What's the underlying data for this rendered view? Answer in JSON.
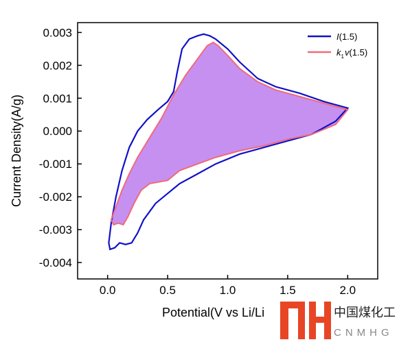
{
  "chart_data": {
    "type": "line",
    "xlabel": "Potential(V vs Li/Li",
    "ylabel": "Current Density(A/g)",
    "xlim": [
      -0.25,
      2.25
    ],
    "ylim": [
      -0.0045,
      0.0033
    ],
    "x_ticks": [
      "0.0",
      "0.5",
      "1.0",
      "1.5",
      "2.0"
    ],
    "y_ticks": [
      "0.003",
      "0.002",
      "0.001",
      "0.000",
      "-0.001",
      "-0.002",
      "-0.003",
      "-0.004"
    ],
    "x_tick_values": [
      0.0,
      0.5,
      1.0,
      1.5,
      2.0
    ],
    "y_tick_values": [
      0.003,
      0.002,
      0.001,
      0.0,
      -0.001,
      -0.002,
      -0.003,
      -0.004
    ],
    "grid": false,
    "legend_position": "top-right",
    "series": [
      {
        "name": "I(1.5)",
        "color": "#1010c8",
        "points": [
          [
            2.0,
            0.0007
          ],
          [
            1.8,
            0.0009
          ],
          [
            1.6,
            0.00115
          ],
          [
            1.4,
            0.00135
          ],
          [
            1.25,
            0.0016
          ],
          [
            1.1,
            0.0021
          ],
          [
            1.0,
            0.0025
          ],
          [
            0.9,
            0.0028
          ],
          [
            0.85,
            0.0029
          ],
          [
            0.8,
            0.00295
          ],
          [
            0.75,
            0.0029
          ],
          [
            0.68,
            0.0028
          ],
          [
            0.62,
            0.0025
          ],
          [
            0.58,
            0.0018
          ],
          [
            0.55,
            0.0012
          ],
          [
            0.5,
            0.0009
          ],
          [
            0.42,
            0.00065
          ],
          [
            0.33,
            0.00035
          ],
          [
            0.25,
            0.0
          ],
          [
            0.18,
            -0.0005
          ],
          [
            0.12,
            -0.0012
          ],
          [
            0.07,
            -0.002
          ],
          [
            0.03,
            -0.0028
          ],
          [
            0.01,
            -0.0034
          ],
          [
            0.02,
            -0.0036
          ],
          [
            0.06,
            -0.00355
          ],
          [
            0.1,
            -0.0034
          ],
          [
            0.15,
            -0.00345
          ],
          [
            0.2,
            -0.0034
          ],
          [
            0.25,
            -0.0031
          ],
          [
            0.3,
            -0.0027
          ],
          [
            0.4,
            -0.0022
          ],
          [
            0.5,
            -0.0019
          ],
          [
            0.6,
            -0.0016
          ],
          [
            0.75,
            -0.0013
          ],
          [
            0.9,
            -0.001
          ],
          [
            1.1,
            -0.0007
          ],
          [
            1.3,
            -0.0005
          ],
          [
            1.5,
            -0.0003
          ],
          [
            1.7,
            -0.0001
          ],
          [
            1.9,
            0.0003
          ],
          [
            2.0,
            0.0007
          ]
        ]
      },
      {
        "name": "k1v(1.5)",
        "color": "#f06a78",
        "points": [
          [
            2.0,
            0.00065
          ],
          [
            1.8,
            0.00085
          ],
          [
            1.6,
            0.00105
          ],
          [
            1.4,
            0.00125
          ],
          [
            1.25,
            0.0015
          ],
          [
            1.1,
            0.0019
          ],
          [
            1.0,
            0.0023
          ],
          [
            0.92,
            0.0026
          ],
          [
            0.88,
            0.0027
          ],
          [
            0.83,
            0.0026
          ],
          [
            0.75,
            0.0022
          ],
          [
            0.65,
            0.0017
          ],
          [
            0.55,
            0.0011
          ],
          [
            0.45,
            0.0004
          ],
          [
            0.35,
            -0.0002
          ],
          [
            0.25,
            -0.0008
          ],
          [
            0.18,
            -0.0013
          ],
          [
            0.12,
            -0.0018
          ],
          [
            0.07,
            -0.0023
          ],
          [
            0.03,
            -0.0027
          ],
          [
            0.05,
            -0.00285
          ],
          [
            0.09,
            -0.0028
          ],
          [
            0.13,
            -0.00285
          ],
          [
            0.17,
            -0.0026
          ],
          [
            0.22,
            -0.0022
          ],
          [
            0.28,
            -0.0018
          ],
          [
            0.35,
            -0.0016
          ],
          [
            0.5,
            -0.0015
          ],
          [
            0.6,
            -0.0012
          ],
          [
            0.75,
            -0.001
          ],
          [
            0.9,
            -0.0008
          ],
          [
            1.1,
            -0.0006
          ],
          [
            1.3,
            -0.00045
          ],
          [
            1.5,
            -0.00025
          ],
          [
            1.7,
            -0.0001
          ],
          [
            1.9,
            0.0002
          ],
          [
            2.0,
            0.00065
          ]
        ]
      }
    ],
    "fill": {
      "series": "k1v(1.5)",
      "color": "#c084f0"
    }
  },
  "legend": {
    "entries": [
      {
        "italic": "I",
        "text": "(1.5)",
        "color": "#1010c8"
      },
      {
        "italic": "k",
        "sub": "1",
        "italic2": "v",
        "text": "(1.5)",
        "color": "#f06a78"
      }
    ]
  },
  "watermark": {
    "logo_text": "MH",
    "cn": "中国煤化工",
    "en": "CNMHG"
  }
}
